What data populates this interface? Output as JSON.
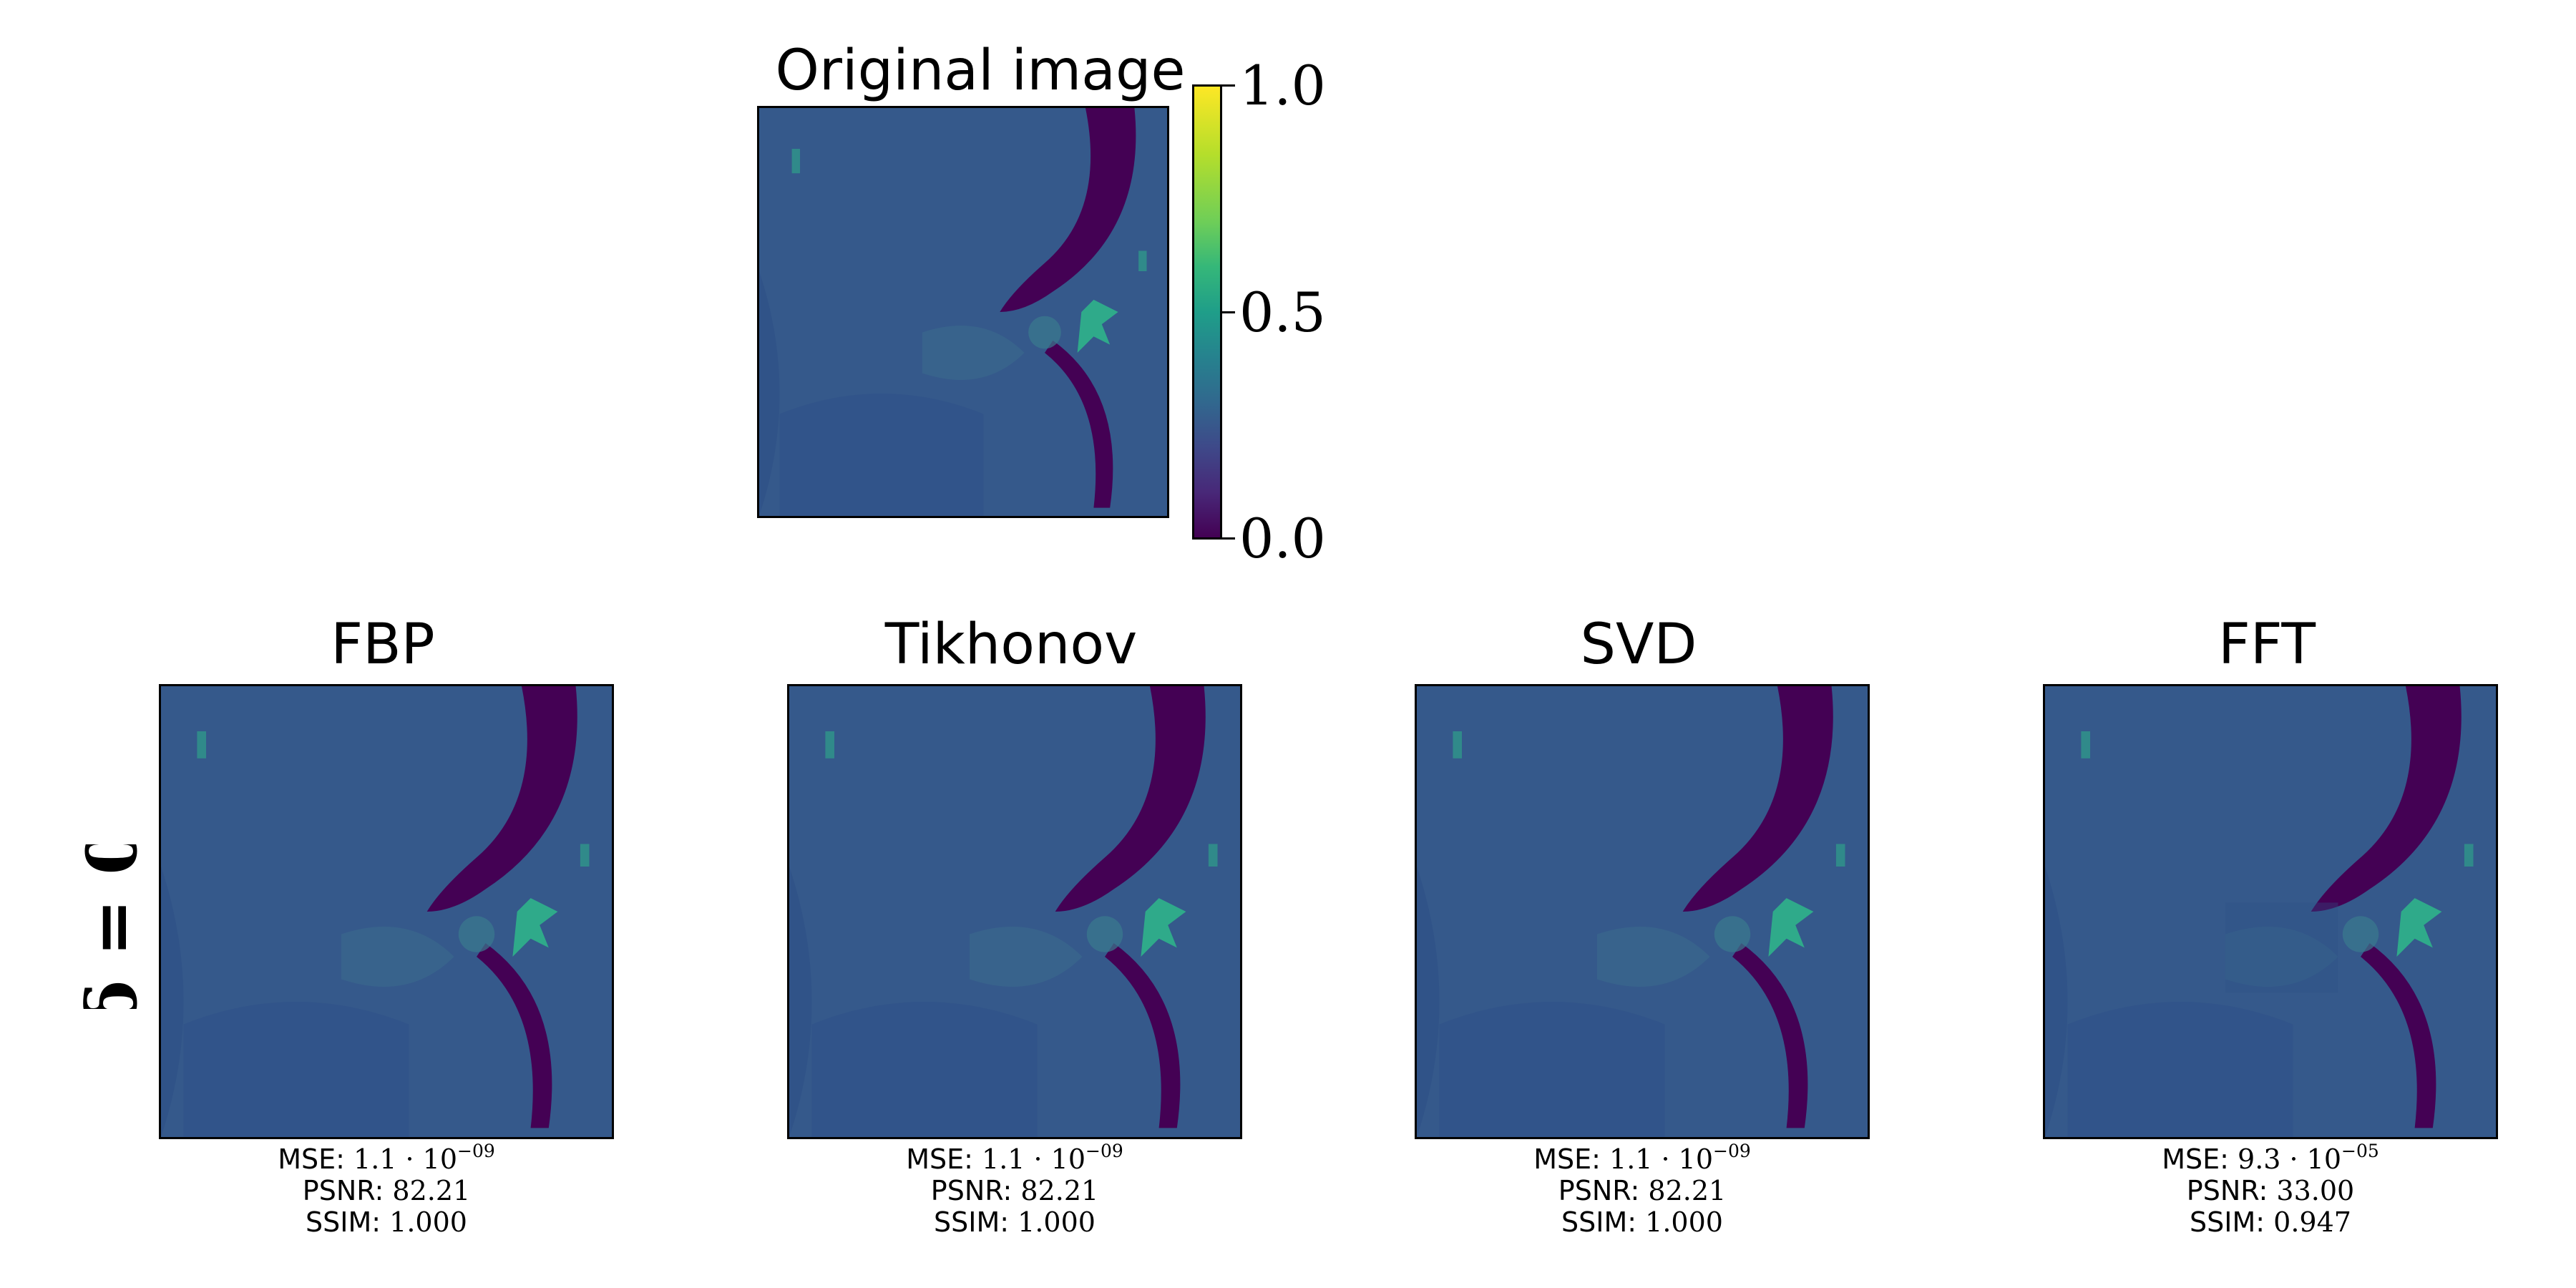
{
  "top": {
    "title": "Original image"
  },
  "colorbar": {
    "ticks": [
      "1.0",
      "0.5",
      "0.0"
    ],
    "colormap": "viridis",
    "range": [
      0.0,
      1.0
    ]
  },
  "row": {
    "label": "δ = 0"
  },
  "colors": {
    "background": "#3a5a8c",
    "dark": "#440154",
    "bright": "#35b779",
    "frame": "#000000"
  },
  "panels": [
    {
      "title": "FBP",
      "mse": "1.1 · 10",
      "mse_exp": "−09",
      "psnr": "82.21",
      "ssim": "1.000"
    },
    {
      "title": "Tikhonov",
      "mse": "1.1 · 10",
      "mse_exp": "−09",
      "psnr": "82.21",
      "ssim": "1.000"
    },
    {
      "title": "SVD",
      "mse": "1.1 · 10",
      "mse_exp": "−09",
      "psnr": "82.21",
      "ssim": "1.000"
    },
    {
      "title": "FFT",
      "mse": "9.3 · 10",
      "mse_exp": "−05",
      "psnr": "33.00",
      "ssim": "0.947"
    }
  ],
  "labels": {
    "mse": "MSE:",
    "psnr": "PSNR:",
    "ssim": "SSIM:"
  }
}
